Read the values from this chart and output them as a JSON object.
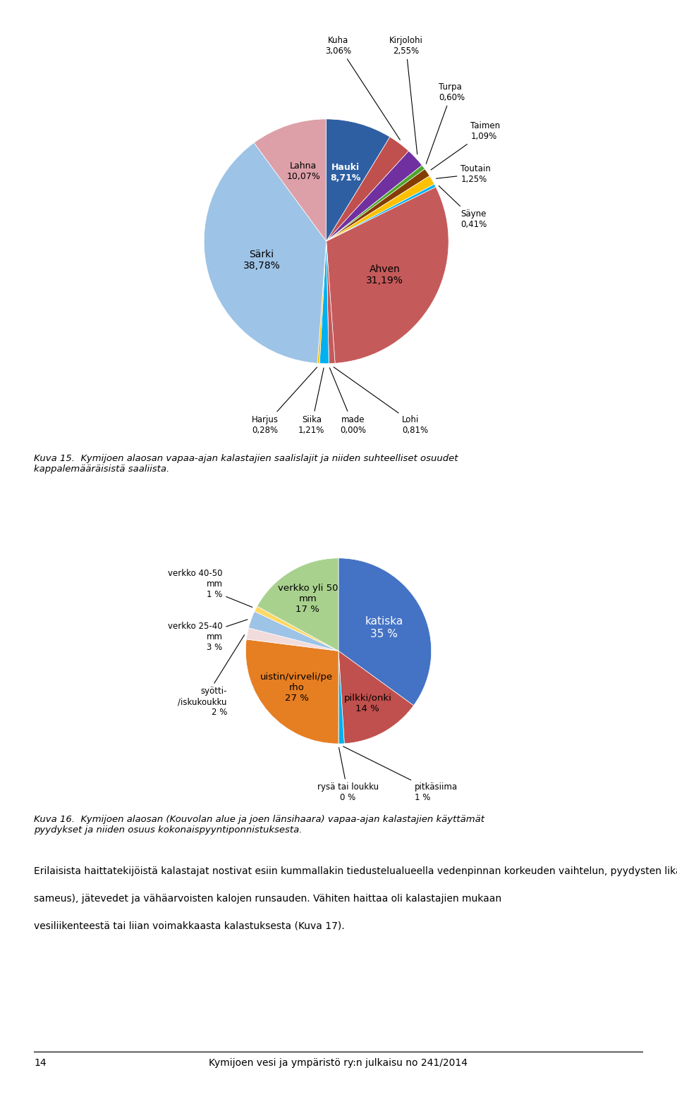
{
  "pie1": {
    "labels": [
      "Hauki",
      "Kuha",
      "Kirjolohi",
      "Turpa",
      "Taimen",
      "Toutain",
      "Säyne",
      "Ahven",
      "Lohi",
      "made",
      "Siika",
      "Harjus",
      "Särki",
      "Lahna"
    ],
    "values": [
      8.71,
      3.06,
      2.55,
      0.6,
      1.09,
      1.25,
      0.41,
      31.19,
      0.81,
      0.0,
      1.21,
      0.28,
      38.78,
      10.07
    ],
    "colors": [
      "#2e5fa3",
      "#c0504d",
      "#7030a0",
      "#4ea72c",
      "#843c00",
      "#ffc000",
      "#00b0f0",
      "#c55a5a",
      "#c55a5a",
      "#70ad47",
      "#00b0f0",
      "#ffc000",
      "#9dc3e6",
      "#dda0a8"
    ]
  },
  "pie2": {
    "labels": [
      "katiska",
      "pilkki/onki",
      "pitkäsiima",
      "rysä tai loukku",
      "uistin/virveli/perho",
      "syötti/iskukoukku",
      "verkko 25-40 mm",
      "verkko 40-50 mm",
      "verkko yli 50 mm"
    ],
    "values": [
      35,
      14,
      1,
      0,
      27,
      2,
      3,
      1,
      17
    ],
    "colors": [
      "#4472c4",
      "#c0504d",
      "#00b0f0",
      "#ffc000",
      "#e67e22",
      "#f2dcdb",
      "#9dc3e6",
      "#ffd966",
      "#a9d18e"
    ]
  },
  "caption1": "Kuva 15.  Kymijoen alaosan vapaa-ajan kalastajien saalislajit ja niiden suhteelliset osuudet\nkappalemääräisistä saaliista.",
  "caption2": "Kuva 16.  Kymijoen alaosan (Kouvolan alue ja joen länsihaara) vapaa-ajan kalastajien käyttämät\npyydykset ja niiden osuus kokonaispyyntiponnistuksesta.",
  "body_text1": "Erilaisista haittatekijöistä kalastajat nostivat esiin kummallakin tiedustelualueella\nvedenpinnan korkeuden vaihtelun, pyydysten likaantumisen, vedenlaadun (mm.",
  "body_text2": "sameus), jätevedet ja vähäarvoisten kalojen runsauden. Vähiten haittaa oli kalastajien mukaan\nvesiliikenteestä tai liian voimakkaasta kalastuksesta (Kuva 17).",
  "footer_num": "14",
  "footer_text": "Kymijoen vesi ja ympäristö ry:n julkaisu no 241/2014"
}
